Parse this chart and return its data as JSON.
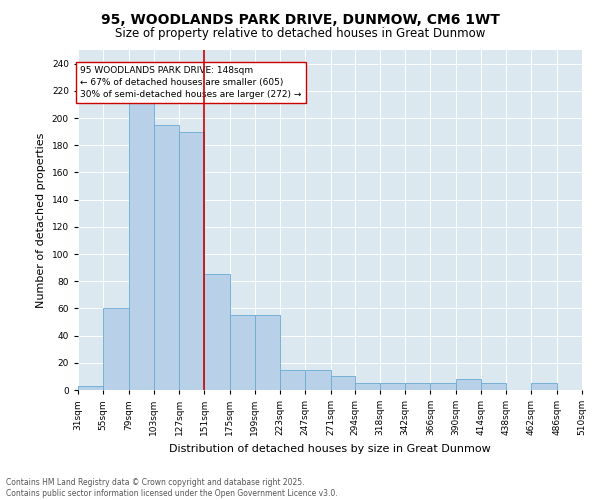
{
  "title_line1": "95, WOODLANDS PARK DRIVE, DUNMOW, CM6 1WT",
  "title_line2": "Size of property relative to detached houses in Great Dunmow",
  "xlabel": "Distribution of detached houses by size in Great Dunmow",
  "ylabel": "Number of detached properties",
  "bar_color": "#b8d0e8",
  "bar_edge_color": "#6aaad4",
  "background_color": "#dce8f0",
  "annotation_line1": "95 WOODLANDS PARK DRIVE: 148sqm",
  "annotation_line2": "← 67% of detached houses are smaller (605)",
  "annotation_line3": "30% of semi-detached houses are larger (272) →",
  "vline_x": 151,
  "vline_color": "#cc0000",
  "bins": [
    31,
    55,
    79,
    103,
    127,
    151,
    175,
    199,
    223,
    247,
    271,
    294,
    318,
    342,
    366,
    390,
    414,
    438,
    462,
    486,
    510
  ],
  "bin_labels": [
    "31sqm",
    "55sqm",
    "79sqm",
    "103sqm",
    "127sqm",
    "151sqm",
    "175sqm",
    "199sqm",
    "223sqm",
    "247sqm",
    "271sqm",
    "294sqm",
    "318sqm",
    "342sqm",
    "366sqm",
    "390sqm",
    "414sqm",
    "438sqm",
    "462sqm",
    "486sqm",
    "510sqm"
  ],
  "bar_heights": [
    3,
    60,
    225,
    195,
    190,
    85,
    55,
    55,
    15,
    15,
    10,
    5,
    5,
    5,
    5,
    8,
    5,
    0,
    5,
    0
  ],
  "ylim": [
    0,
    250
  ],
  "yticks": [
    0,
    20,
    40,
    60,
    80,
    100,
    120,
    140,
    160,
    180,
    200,
    220,
    240
  ],
  "footer_line1": "Contains HM Land Registry data © Crown copyright and database right 2025.",
  "footer_line2": "Contains public sector information licensed under the Open Government Licence v3.0.",
  "title_fontsize": 10,
  "subtitle_fontsize": 8.5,
  "axis_label_fontsize": 8,
  "tick_fontsize": 6.5,
  "annotation_fontsize": 6.5,
  "footer_fontsize": 5.5,
  "fig_width": 6.0,
  "fig_height": 5.0,
  "fig_dpi": 100
}
